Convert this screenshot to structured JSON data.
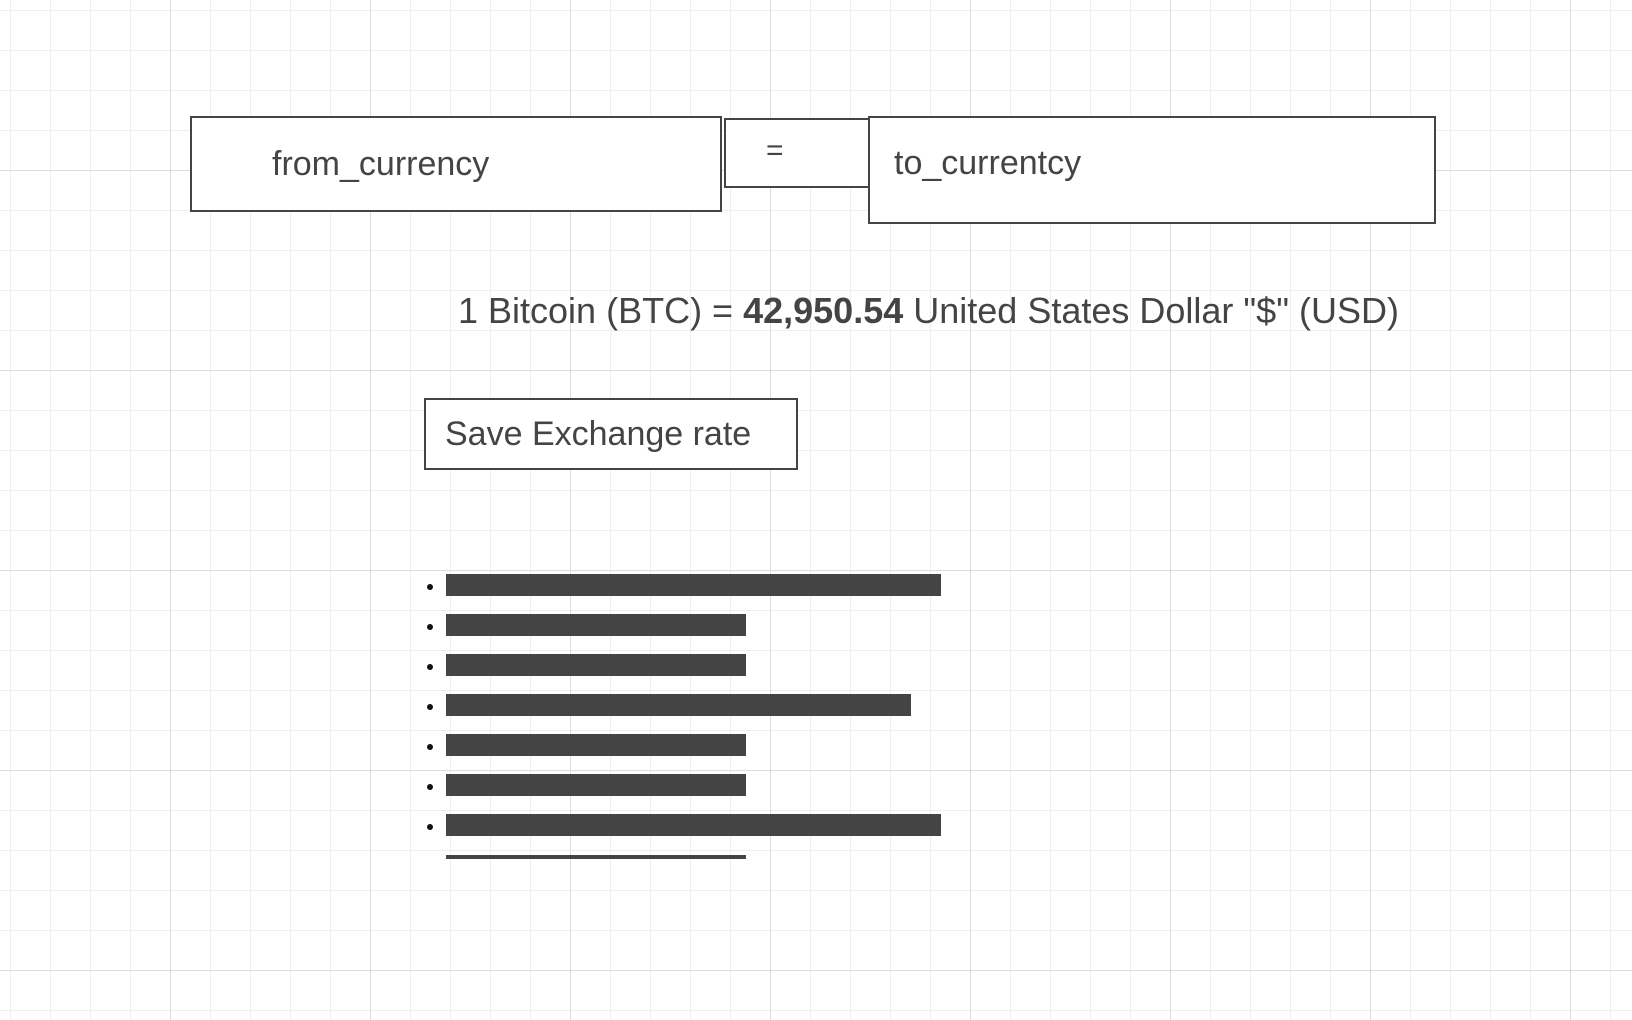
{
  "converter": {
    "from_currency": "from_currency",
    "equals": "=",
    "to_currency": "to_currentcy"
  },
  "rate": {
    "prefix": "1 Bitcoin (BTC) = ",
    "value": "42,950.54",
    "suffix": " United States Dollar \"$\" (USD)"
  },
  "save_button": {
    "label": "Save Exchange rate"
  },
  "saved_rates": {
    "items": [
      {
        "level": 0.66
      },
      {
        "level": 0.4
      },
      {
        "level": 0.4
      },
      {
        "level": 0.62
      },
      {
        "level": 0.4
      },
      {
        "level": 0.4
      },
      {
        "level": 0.66
      },
      {
        "level": 0.4
      }
    ]
  },
  "colors": {
    "text": "#444444",
    "border": "#444444",
    "placeholder_bar": "#444444",
    "grid_major": "#dcdcdc",
    "grid_minor": "#efefef"
  }
}
